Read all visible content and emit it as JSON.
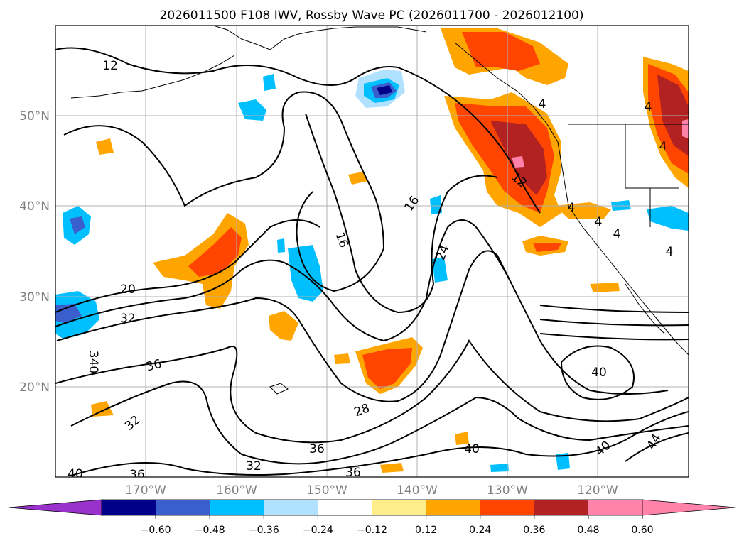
{
  "title": "2026011500 F108 IWV, Rossby Wave PC (2026011700 - 2026012100)",
  "map": {
    "lon_range": [
      -180,
      -110
    ],
    "lat_range": [
      10,
      60
    ],
    "lat_labels": [
      "50°N",
      "40°N",
      "30°N",
      "20°N"
    ],
    "lon_labels": [
      "170°W",
      "160°W",
      "150°W",
      "140°W",
      "130°W",
      "120°W"
    ]
  },
  "colorbar": {
    "colors": [
      "#9932cc",
      "#00008b",
      "#3a5fcd",
      "#00bfff",
      "#b0e2ff",
      "#ffffff",
      "#ffec8b",
      "#ffa500",
      "#ff4500",
      "#b22222",
      "#ff82ab",
      "#ff82ab"
    ],
    "under_color": "#9932cc",
    "over_color": "#ff82ab",
    "tick_labels": [
      "−0.60",
      "−0.48",
      "−0.36",
      "−0.24",
      "−0.12",
      "0.12",
      "0.24",
      "0.36",
      "0.48",
      "0.60"
    ]
  },
  "contour_labels": [
    "12",
    "16",
    "16",
    "12",
    "24",
    "20",
    "32",
    "340",
    "36",
    "28",
    "32",
    "36",
    "36",
    "32",
    "36",
    "40",
    "40",
    "40",
    "44",
    "4",
    "4",
    "4",
    "4",
    "4",
    "4",
    "4",
    "40"
  ],
  "chart_data": {
    "type": "map",
    "title": "2026011500 F108 IWV, Rossby Wave PC (2026011700 - 2026012100)",
    "colorbar_levels": [
      -0.6,
      -0.48,
      -0.36,
      -0.24,
      -0.12,
      0.12,
      0.24,
      0.36,
      0.48,
      0.6
    ],
    "contour_variable": "IWV",
    "contour_levels_labeled": [
      4,
      12,
      16,
      20,
      24,
      28,
      32,
      36,
      40,
      44
    ]
  }
}
